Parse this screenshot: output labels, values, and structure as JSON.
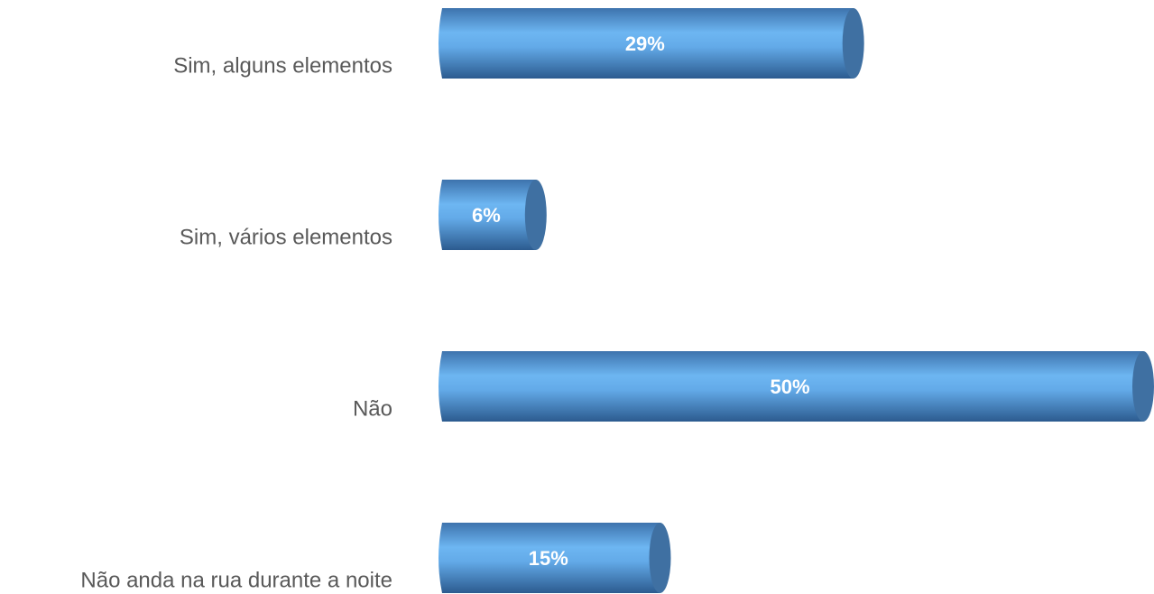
{
  "chart_data": {
    "type": "bar",
    "orientation": "horizontal",
    "categories": [
      "Sim, alguns elementos",
      "Sim, vários elementos",
      "Não",
      "Não anda na rua durante a noite"
    ],
    "values": [
      29,
      6,
      50,
      15
    ],
    "value_labels": [
      "29%",
      "6%",
      "50%",
      "15%"
    ],
    "color": "#5b9bd5"
  }
}
